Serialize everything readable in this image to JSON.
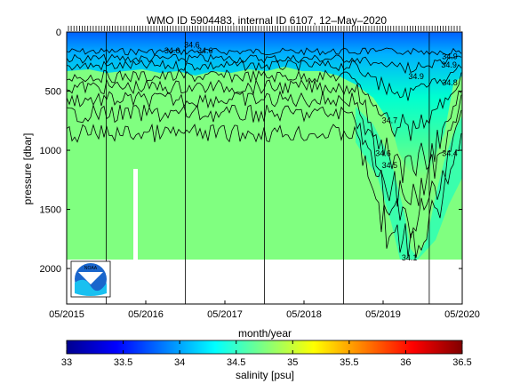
{
  "chart_data": [
    {
      "type": "heatmap",
      "title": "WMO ID 5904483, internal ID 6107, 12–May–2020",
      "xlabel": "month/year",
      "ylabel": "pressure [dbar]",
      "x_ticks": [
        "05/2015",
        "05/2016",
        "05/2017",
        "05/2018",
        "05/2019",
        "05/2020"
      ],
      "x_range": [
        "05/2015",
        "05/2020"
      ],
      "y_ticks": [
        0,
        500,
        1000,
        1500,
        2000
      ],
      "y_range": [
        0,
        2300
      ],
      "y_reversed": true,
      "bottom_pressure": 2000,
      "contour_labels": [
        {
          "text": "34.6",
          "x": "09/2016",
          "pressure": 180
        },
        {
          "text": "34.6",
          "x": "12/2016",
          "pressure": 130
        },
        {
          "text": "34.6",
          "x": "02/2017",
          "pressure": 180
        },
        {
          "text": "34.9",
          "x": "05/2020",
          "pressure": 230
        },
        {
          "text": "34.9",
          "x": "03/2020",
          "pressure": 300
        },
        {
          "text": "34.9",
          "x": "10/2019",
          "pressure": 400
        },
        {
          "text": "34.8",
          "x": "04/2020",
          "pressure": 450
        },
        {
          "text": "34.7",
          "x": "06/2019",
          "pressure": 770
        },
        {
          "text": "34.6",
          "x": "05/2019",
          "pressure": 1050
        },
        {
          "text": "34.5",
          "x": "06/2019",
          "pressure": 1150
        },
        {
          "text": "34.4",
          "x": "04/2020",
          "pressure": 1050
        },
        {
          "text": "34.1",
          "x": "09/2019",
          "pressure": 1930
        }
      ],
      "vertical_lines_dates": [
        "11/2015",
        "11/2016",
        "11/2017",
        "11/2018",
        "12/2019"
      ],
      "field_background": "#80ff80",
      "logo": "NOAA"
    },
    {
      "type": "colorbar",
      "label": "salinity [psu]",
      "ticks": [
        33,
        33.5,
        34,
        34.5,
        35,
        35.5,
        36,
        36.5
      ],
      "range": [
        33,
        36.5
      ],
      "colormap": "jet"
    }
  ]
}
